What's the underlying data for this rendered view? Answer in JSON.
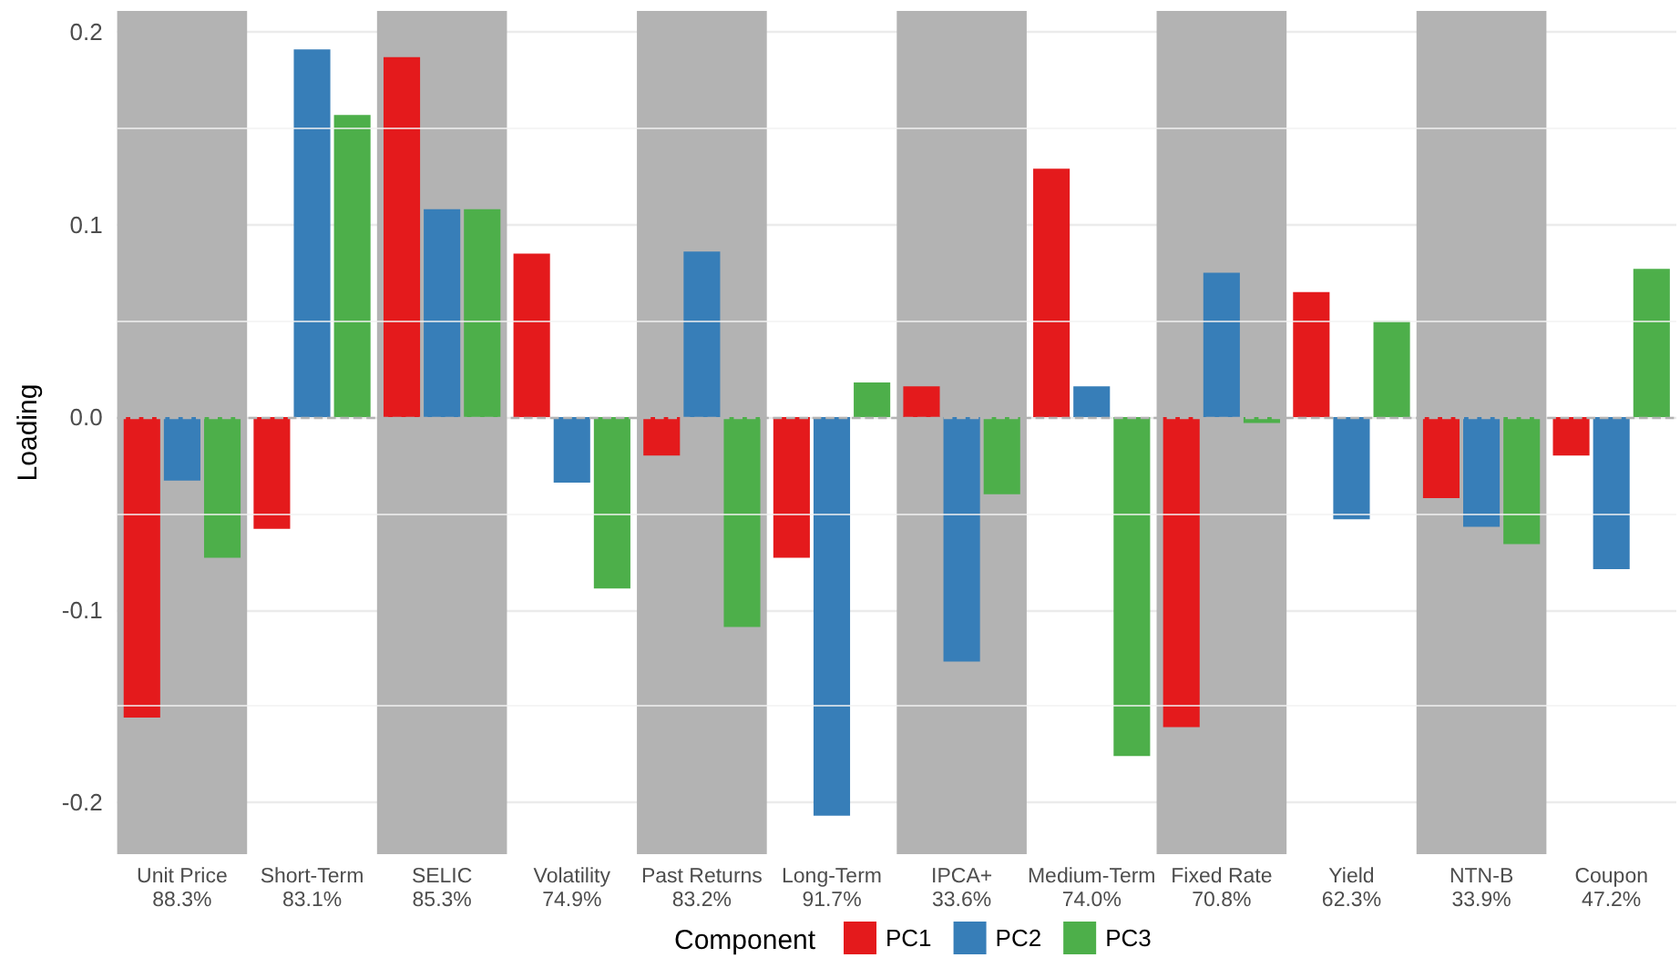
{
  "chart_data": {
    "type": "bar",
    "ylabel": "Loading",
    "legend_title": "Component",
    "legend": "bottom",
    "grid": "y",
    "categories": [
      "Unit Price\n88.3%",
      "Short-Term\n83.1%",
      "SELIC\n85.3%",
      "Volatility\n74.9%",
      "Past Returns\n83.2%",
      "Long-Term\n91.7%",
      "IPCA+\n33.6%",
      "Medium-Term\n74.0%",
      "Fixed Rate\n70.8%",
      "Yield\n62.3%",
      "NTN-B\n33.9%",
      "Coupon\n47.2%"
    ],
    "series": [
      {
        "name": "PC1",
        "color": "#e41a1c",
        "values": [
          -0.156,
          -0.058,
          0.187,
          0.085,
          -0.02,
          -0.073,
          0.016,
          0.129,
          -0.161,
          0.065,
          -0.042,
          -0.02
        ]
      },
      {
        "name": "PC2",
        "color": "#377eb8",
        "values": [
          -0.033,
          0.191,
          0.108,
          -0.034,
          0.086,
          -0.207,
          -0.127,
          0.016,
          0.075,
          -0.053,
          -0.057,
          -0.079
        ]
      },
      {
        "name": "PC3",
        "color": "#4daf4a",
        "values": [
          -0.073,
          0.157,
          0.108,
          -0.089,
          -0.109,
          0.018,
          -0.04,
          -0.176,
          -0.003,
          0.05,
          -0.066,
          0.077
        ]
      }
    ],
    "ylim": [
      -0.227,
      0.211
    ],
    "yticks": [
      {
        "value": -0.2,
        "label": "-0.2"
      },
      {
        "value": -0.1,
        "label": "-0.1"
      },
      {
        "value": 0,
        "label": "0.0"
      },
      {
        "value": 0.1,
        "label": "0.1"
      },
      {
        "value": 0.2,
        "label": "0.2"
      }
    ],
    "ref_lines": [
      {
        "axis": "y",
        "value": 0,
        "color": "#b3b3b3",
        "line_style": "dashed"
      }
    ],
    "bands": [
      {
        "axis": "x",
        "from": "Unit Price\n88.3%",
        "to": "Unit Price\n88.3%",
        "color": "#b3b3b3"
      },
      {
        "axis": "x",
        "from": "SELIC\n85.3%",
        "to": "SELIC\n85.3%",
        "color": "#b3b3b3"
      },
      {
        "axis": "x",
        "from": "Past Returns\n83.2%",
        "to": "Past Returns\n83.2%",
        "color": "#b3b3b3"
      },
      {
        "axis": "x",
        "from": "IPCA+\n33.6%",
        "to": "IPCA+\n33.6%",
        "color": "#b3b3b3"
      },
      {
        "axis": "x",
        "from": "Fixed Rate\n70.8%",
        "to": "Fixed Rate\n70.8%",
        "color": "#b3b3b3"
      },
      {
        "axis": "x",
        "from": "NTN-B\n33.9%",
        "to": "NTN-B\n33.9%",
        "color": "#b3b3b3"
      }
    ]
  }
}
